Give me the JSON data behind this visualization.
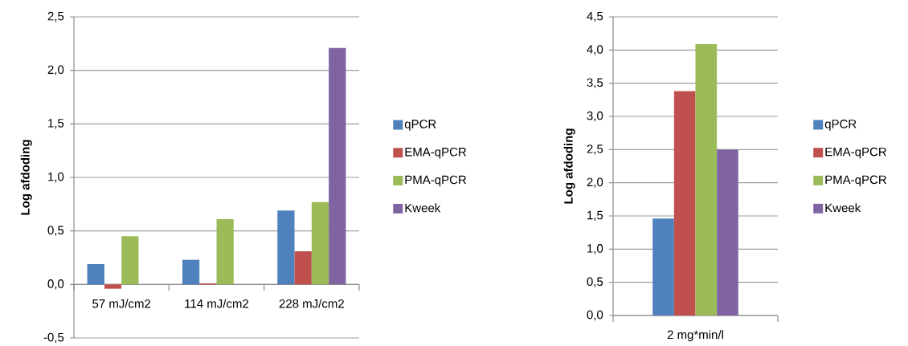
{
  "chart_data": [
    {
      "type": "bar",
      "ylabel": "Log afdoding",
      "categories": [
        "57 mJ/cm2",
        "114 mJ/cm2",
        "228 mJ/cm2"
      ],
      "series": [
        {
          "name": "qPCR",
          "color": "#4f81bd",
          "values": [
            0.19,
            0.23,
            0.69
          ]
        },
        {
          "name": "EMA-qPCR",
          "color": "#c0504d",
          "values": [
            -0.04,
            0.01,
            0.31
          ]
        },
        {
          "name": "PMA-qPCR",
          "color": "#9bbb59",
          "values": [
            0.45,
            0.61,
            0.77
          ]
        },
        {
          "name": "Kweek",
          "color": "#8064a2",
          "values": [
            null,
            null,
            2.21
          ]
        }
      ],
      "ylim": [
        -0.5,
        2.5
      ],
      "yticks": [
        {
          "value": -0.5,
          "label": "-0,5"
        },
        {
          "value": 0,
          "label": "0,0"
        },
        {
          "value": 0.5,
          "label": "0,5"
        },
        {
          "value": 1,
          "label": "1,0"
        },
        {
          "value": 1.5,
          "label": "1,5"
        },
        {
          "value": 2,
          "label": "2,0"
        },
        {
          "value": 2.5,
          "label": "2,5"
        }
      ],
      "grid": "y",
      "legend": "right"
    },
    {
      "type": "bar",
      "ylabel": "Log afdoding",
      "categories": [
        "2 mg*min/l"
      ],
      "series": [
        {
          "name": "qPCR",
          "color": "#4f81bd",
          "values": [
            1.46
          ]
        },
        {
          "name": "EMA-qPCR",
          "color": "#c0504d",
          "values": [
            3.38
          ]
        },
        {
          "name": "PMA-qPCR",
          "color": "#9bbb59",
          "values": [
            4.09
          ]
        },
        {
          "name": "Kweek",
          "color": "#8064a2",
          "values": [
            2.5
          ]
        }
      ],
      "ylim": [
        0,
        4.5
      ],
      "yticks": [
        {
          "value": 0,
          "label": "0,0"
        },
        {
          "value": 0.5,
          "label": "0,5"
        },
        {
          "value": 1,
          "label": "1,0"
        },
        {
          "value": 1.5,
          "label": "1,5"
        },
        {
          "value": 2,
          "label": "2,0"
        },
        {
          "value": 2.5,
          "label": "2,5"
        },
        {
          "value": 3,
          "label": "3,0"
        },
        {
          "value": 3.5,
          "label": "3,5"
        },
        {
          "value": 4,
          "label": "4,0"
        },
        {
          "value": 4.5,
          "label": "4,5"
        }
      ],
      "grid": "y",
      "legend": "right"
    }
  ]
}
